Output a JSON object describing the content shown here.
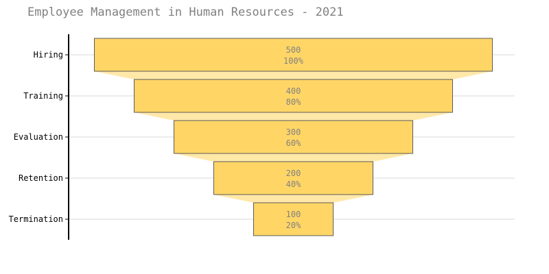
{
  "chart_data": {
    "type": "funnel",
    "title": "Employee Management in Human Resources - 2021",
    "categories": [
      "Hiring",
      "Training",
      "Evaluation",
      "Retention",
      "Termination"
    ],
    "values": [
      500,
      400,
      300,
      200,
      100
    ],
    "percent_labels": [
      "100%",
      "80%",
      "60%",
      "40%",
      "20%"
    ],
    "grid": true,
    "colors": {
      "bar_fill": "#ffd666",
      "bar_stroke": "#5a5a5a",
      "connector_fill": "#ffe8a8",
      "gridline": "#e6e6e6",
      "axis_line": "#000000",
      "data_label": "#808080",
      "tick_label": "#000000"
    }
  }
}
